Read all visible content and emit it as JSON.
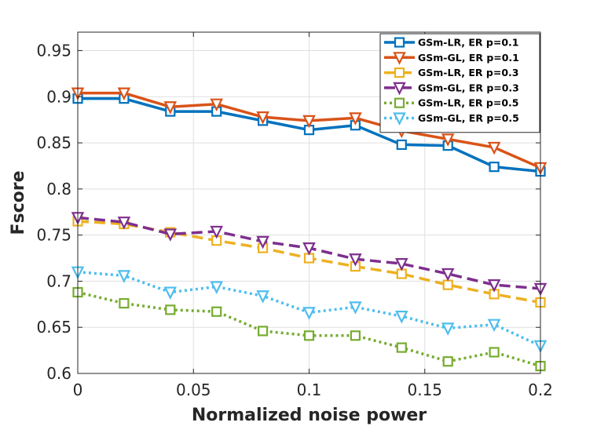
{
  "chart_data": {
    "type": "line",
    "xlabel": "Normalized noise power",
    "ylabel": "Fscore",
    "xlim": [
      0,
      0.2
    ],
    "ylim": [
      0.6,
      0.97
    ],
    "x": [
      0,
      0.02,
      0.04,
      0.06,
      0.08,
      0.1,
      0.12,
      0.14,
      0.16,
      0.18,
      0.2
    ],
    "x_ticks": [
      0,
      0.05,
      0.1,
      0.15,
      0.2
    ],
    "x_tick_labels": [
      "0",
      "0.05",
      "0.1",
      "0.15",
      "0.2"
    ],
    "y_ticks": [
      0.6,
      0.65,
      0.7,
      0.75,
      0.8,
      0.85,
      0.9,
      0.95
    ],
    "y_tick_labels": [
      "0.6",
      "0.65",
      "0.7",
      "0.75",
      "0.8",
      "0.85",
      "0.9",
      "0.95"
    ],
    "grid": true,
    "legend_position": "top-right",
    "series": [
      {
        "name": "GSm-LR, ER p=0.1",
        "color": "#0072BD",
        "line_style": "solid",
        "marker": "square",
        "values": [
          0.898,
          0.898,
          0.884,
          0.884,
          0.874,
          0.864,
          0.869,
          0.848,
          0.847,
          0.824,
          0.819
        ]
      },
      {
        "name": "GSm-GL, ER p=0.1",
        "color": "#D95319",
        "line_style": "solid",
        "marker": "triangle-down",
        "values": [
          0.904,
          0.904,
          0.889,
          0.892,
          0.878,
          0.874,
          0.877,
          0.863,
          0.854,
          0.845,
          0.823
        ]
      },
      {
        "name": "GSm-LR, ER p=0.3",
        "color": "#EDB120",
        "line_style": "dashed",
        "marker": "square",
        "values": [
          0.765,
          0.762,
          0.753,
          0.744,
          0.736,
          0.725,
          0.716,
          0.708,
          0.696,
          0.686,
          0.677
        ]
      },
      {
        "name": "GSm-GL, ER p=0.3",
        "color": "#7E2F8E",
        "line_style": "dashed",
        "marker": "triangle-down",
        "values": [
          0.769,
          0.764,
          0.751,
          0.754,
          0.743,
          0.736,
          0.724,
          0.719,
          0.708,
          0.696,
          0.692
        ]
      },
      {
        "name": "GSm-LR, ER p=0.5",
        "color": "#77AC30",
        "line_style": "dotted",
        "marker": "square",
        "values": [
          0.688,
          0.676,
          0.669,
          0.667,
          0.646,
          0.641,
          0.641,
          0.628,
          0.613,
          0.623,
          0.608
        ]
      },
      {
        "name": "GSm-GL, ER p=0.5",
        "color": "#4DBEEE",
        "line_style": "dotted",
        "marker": "triangle-down",
        "values": [
          0.71,
          0.706,
          0.688,
          0.694,
          0.684,
          0.666,
          0.672,
          0.662,
          0.649,
          0.653,
          0.63
        ]
      }
    ]
  }
}
